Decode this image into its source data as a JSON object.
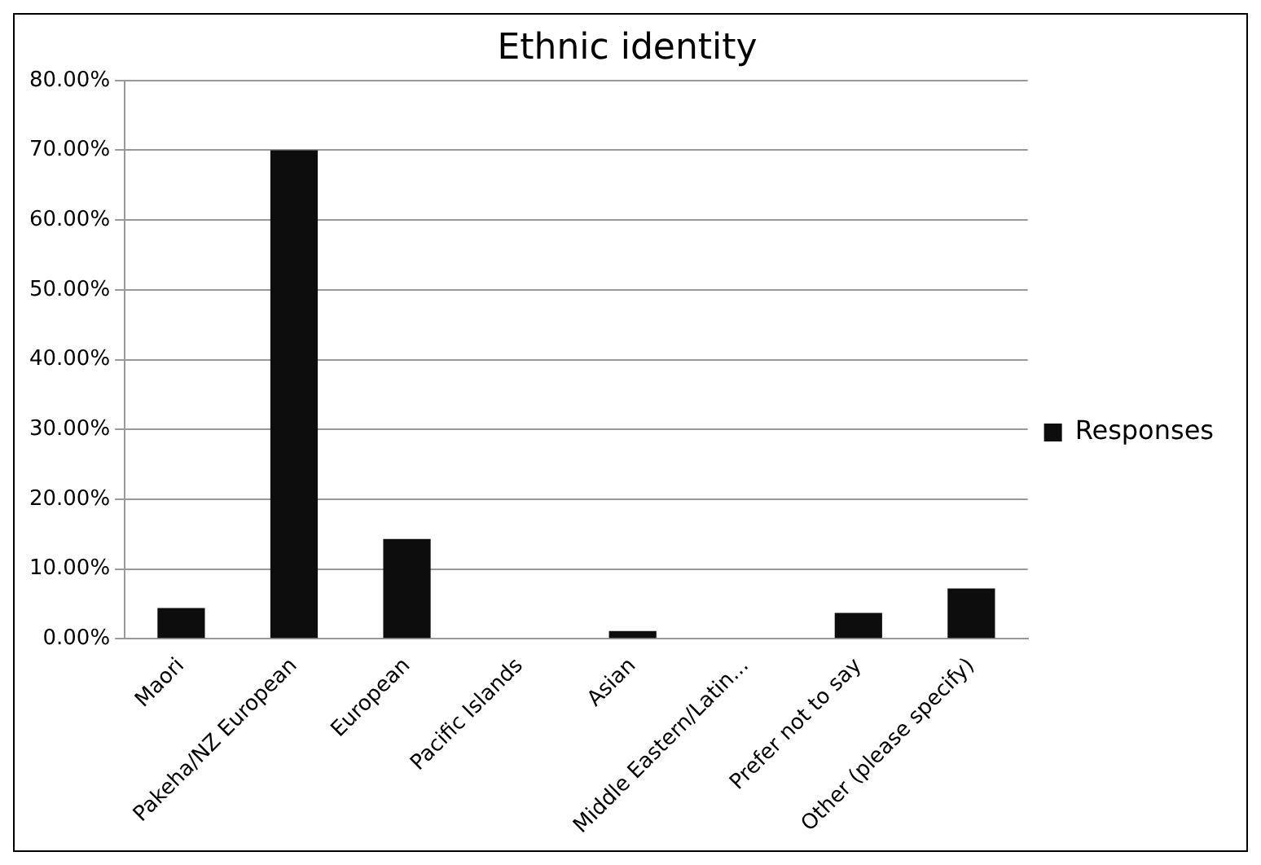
{
  "chart_data": {
    "type": "bar",
    "title": "Ethnic identity",
    "categories": [
      "Maori",
      "Pakeha/NZ European",
      "European",
      "Pacific Islands",
      "Asian",
      "Middle Eastern/Latin...",
      "Prefer not to say",
      "Other (please specify)"
    ],
    "series": [
      {
        "name": "Responses",
        "color": "#0d0d0d",
        "values": [
          4.4,
          70,
          14.3,
          0,
          1.1,
          0,
          3.7,
          7.2
        ]
      }
    ],
    "ylim": [
      0,
      80
    ],
    "yticks": [
      {
        "value": 0,
        "label": "0.00%"
      },
      {
        "value": 10,
        "label": "10.00%"
      },
      {
        "value": 20,
        "label": "20.00%"
      },
      {
        "value": 30,
        "label": "30.00%"
      },
      {
        "value": 40,
        "label": "40.00%"
      },
      {
        "value": 50,
        "label": "50.00%"
      },
      {
        "value": 60,
        "label": "60.00%"
      },
      {
        "value": 70,
        "label": "70.00%"
      },
      {
        "value": 80,
        "label": "80.00%"
      }
    ],
    "grid": "y",
    "legend": "right"
  }
}
